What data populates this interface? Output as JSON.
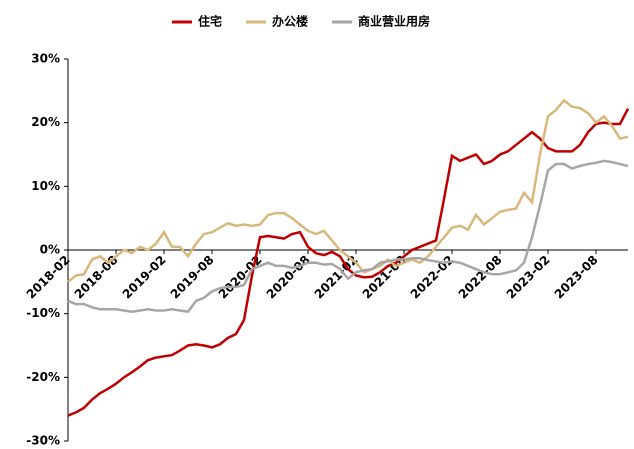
{
  "chart_data": {
    "type": "line",
    "categories": [
      "2018-02",
      null,
      null,
      null,
      null,
      null,
      "2018-08",
      null,
      null,
      null,
      null,
      null,
      "2019-02",
      null,
      null,
      null,
      null,
      null,
      "2019-08",
      null,
      null,
      null,
      null,
      null,
      "2020-02",
      null,
      null,
      null,
      null,
      null,
      "2020-08",
      null,
      null,
      null,
      null,
      null,
      "2021-02",
      null,
      null,
      null,
      null,
      null,
      "2021-08",
      null,
      null,
      null,
      null,
      null,
      "2022-02",
      null,
      null,
      null,
      null,
      null,
      "2022-08",
      null,
      null,
      null,
      null,
      null,
      "2023-02",
      null,
      null,
      null,
      null,
      null,
      "2023-08",
      null,
      null,
      null,
      null
    ],
    "series": [
      {
        "name": "住宅",
        "color": "#c00000",
        "values": [
          -26,
          -25.5,
          -24.8,
          -23.5,
          -22.5,
          -21.8,
          -21,
          -20,
          -19.2,
          -18.3,
          -17.3,
          -16.9,
          -16.7,
          -16.5,
          -15.8,
          -15,
          -14.8,
          -15,
          -15.3,
          -14.8,
          -13.8,
          -13.2,
          -11,
          -4,
          2,
          2.2,
          2,
          1.8,
          2.5,
          2.8,
          0.5,
          -0.5,
          -0.8,
          -0.3,
          -1,
          -3,
          -4,
          -4.3,
          -4.2,
          -3.5,
          -2.5,
          -2,
          -1,
          0,
          0.5,
          1,
          1.5,
          8,
          14.8,
          14,
          14.5,
          15,
          13.5,
          14,
          15,
          15.5,
          16.5,
          17.5,
          18.5,
          17.5,
          16,
          15.5,
          15.5,
          15.5,
          16.5,
          18.5,
          19.8,
          20,
          19.8,
          19.8,
          22.2
        ]
      },
      {
        "name": "办公楼",
        "color": "#d9b77a",
        "values": [
          -5,
          -4,
          -3.8,
          -1.5,
          -1,
          -2,
          -1,
          0,
          -0.5,
          0.5,
          0,
          1,
          2.8,
          0.5,
          0.5,
          -1,
          1,
          2.5,
          2.8,
          3.5,
          4.2,
          3.8,
          4,
          3.8,
          4,
          5.5,
          5.8,
          5.8,
          5,
          4,
          3,
          2.5,
          3,
          1.5,
          0,
          -1,
          -2,
          -3.5,
          -3,
          -2.5,
          -1.5,
          -2.5,
          -2,
          -1.5,
          -2,
          -1,
          0.5,
          2,
          3.5,
          3.8,
          3.2,
          5.5,
          4,
          5,
          6,
          6.3,
          6.5,
          9,
          7.5,
          15,
          21,
          22,
          23.5,
          22.5,
          22.3,
          21.5,
          20,
          21,
          19.5,
          17.5,
          17.8
        ]
      },
      {
        "name": "商业营业用房",
        "color": "#a6a6a6",
        "values": [
          -8,
          -8.5,
          -8.5,
          -9,
          -9.3,
          -9.3,
          -9.3,
          -9.5,
          -9.7,
          -9.5,
          -9.3,
          -9.5,
          -9.5,
          -9.3,
          -9.5,
          -9.7,
          -8,
          -7.5,
          -6.5,
          -6,
          -5.8,
          -5.8,
          -5.5,
          -3,
          -2.5,
          -2,
          -2.5,
          -2.5,
          -2.8,
          -2.5,
          -2,
          -2,
          -2.3,
          -2.2,
          -3,
          -4.5,
          -3.5,
          -3.2,
          -3,
          -2,
          -1.8,
          -1.5,
          -1.5,
          -1.3,
          -1.3,
          -1.6,
          -1.8,
          -2,
          -1.8,
          -2,
          -2.5,
          -3,
          -3.5,
          -3.8,
          -3.8,
          -3.5,
          -3.2,
          -2,
          2,
          7,
          12.5,
          13.5,
          13.5,
          12.8,
          13.2,
          13.5,
          13.7,
          14,
          13.8,
          13.5,
          13.2
        ]
      }
    ],
    "ylim": [
      -30,
      30
    ],
    "yticks": [
      {
        "value": -30,
        "label": "-30%"
      },
      {
        "value": -20,
        "label": "-20%"
      },
      {
        "value": -10,
        "label": "-10%"
      },
      {
        "value": 0,
        "label": "0%"
      },
      {
        "value": 10,
        "label": "10%"
      },
      {
        "value": 20,
        "label": "20%"
      },
      {
        "value": 30,
        "label": "30%"
      }
    ],
    "legend": "top"
  }
}
